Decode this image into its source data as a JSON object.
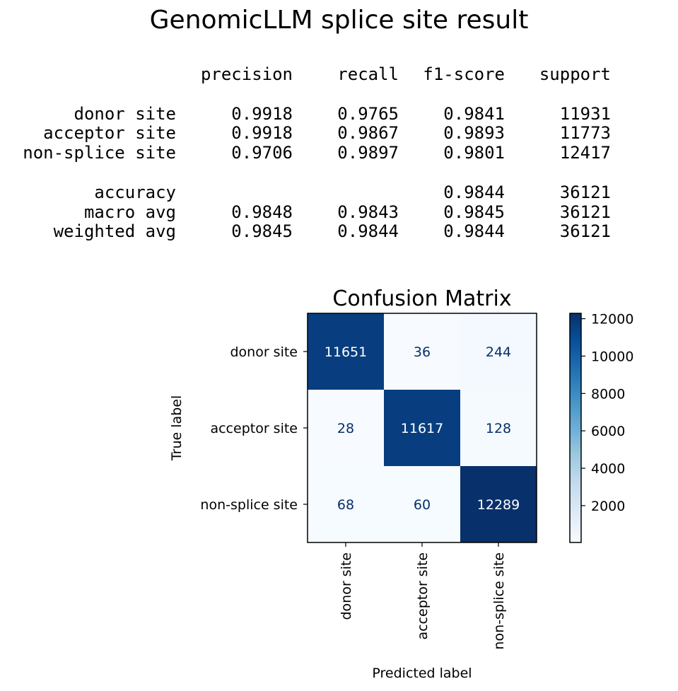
{
  "figure": {
    "title": "GenomicLLM splice site result"
  },
  "report": {
    "headers": [
      "precision",
      "recall",
      "f1-score",
      "support"
    ],
    "rows": [
      {
        "label": "donor site",
        "precision": "0.9918",
        "recall": "0.9765",
        "f1": "0.9841",
        "support": "11931"
      },
      {
        "label": "acceptor site",
        "precision": "0.9918",
        "recall": "0.9867",
        "f1": "0.9893",
        "support": "11773"
      },
      {
        "label": "non-splice site",
        "precision": "0.9706",
        "recall": "0.9897",
        "f1": "0.9801",
        "support": "12417"
      }
    ],
    "summary": [
      {
        "label": "accuracy",
        "precision": "",
        "recall": "",
        "f1": "0.9844",
        "support": "36121"
      },
      {
        "label": "macro avg",
        "precision": "0.9848",
        "recall": "0.9843",
        "f1": "0.9845",
        "support": "36121"
      },
      {
        "label": "weighted avg",
        "precision": "0.9845",
        "recall": "0.9844",
        "f1": "0.9844",
        "support": "36121"
      }
    ]
  },
  "chart_data": {
    "type": "heatmap",
    "title": "Confusion Matrix",
    "xlabel": "Predicted label",
    "ylabel": "True label",
    "x_categories": [
      "donor site",
      "acceptor site",
      "non-splice site"
    ],
    "y_categories": [
      "donor site",
      "acceptor site",
      "non-splice site"
    ],
    "values": [
      [
        11651,
        36,
        244
      ],
      [
        28,
        11617,
        128
      ],
      [
        68,
        60,
        12289
      ]
    ],
    "colormap": "Blues",
    "colorbar": {
      "min": 28,
      "max": 12289,
      "ticks": [
        2000,
        4000,
        6000,
        8000,
        10000,
        12000
      ]
    },
    "colors": {
      "low": "#f7fbff",
      "high": "#08306b",
      "text_dark": "#08306b",
      "text_light": "#ffffff"
    }
  }
}
